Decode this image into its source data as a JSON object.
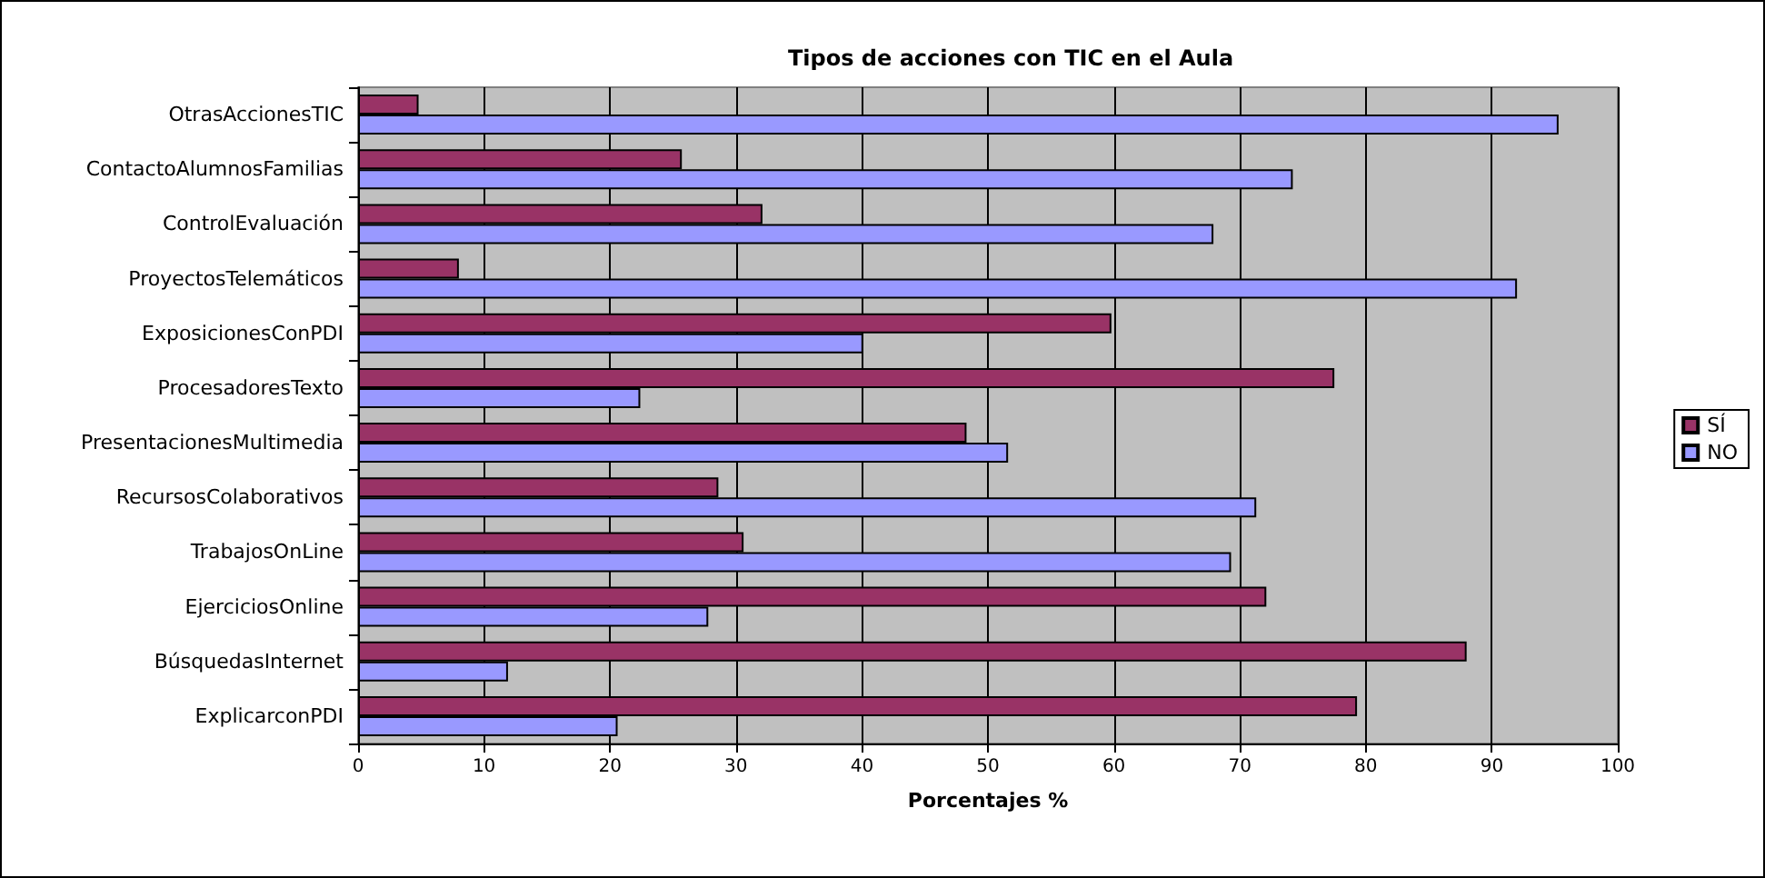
{
  "chart_data": {
    "type": "bar",
    "orientation": "horizontal",
    "title": "Tipos de acciones con TIC en el Aula",
    "xlabel": "Porcentajes %",
    "categories": [
      "OtrasAccionesTIC",
      "ContactoAlumnosFamilias",
      "ControlEvaluación",
      "ProyectosTelemáticos",
      "ExposicionesConPDI",
      "ProcesadoresTexto",
      "PresentacionesMultimedia",
      "RecursosColaborativos",
      "TrabajosOnLine",
      "EjerciciosOnline",
      "BúsquedasInternet",
      "ExplicarconPDI"
    ],
    "series": [
      {
        "name": "SÍ",
        "color": "#993366",
        "values": [
          4.8,
          25.7,
          32.1,
          8.0,
          59.8,
          77.5,
          48.3,
          28.6,
          30.6,
          72.1,
          88.0,
          79.3
        ]
      },
      {
        "name": "NO",
        "color": "#9999ff",
        "values": [
          95.3,
          74.2,
          67.9,
          92.0,
          40.1,
          22.4,
          51.6,
          71.3,
          69.3,
          27.8,
          11.9,
          20.6
        ]
      }
    ],
    "xlim": [
      0,
      100
    ],
    "xticks": [
      0,
      10,
      20,
      30,
      40,
      50,
      60,
      70,
      80,
      90,
      100
    ],
    "grid": "x",
    "legend": "right"
  }
}
